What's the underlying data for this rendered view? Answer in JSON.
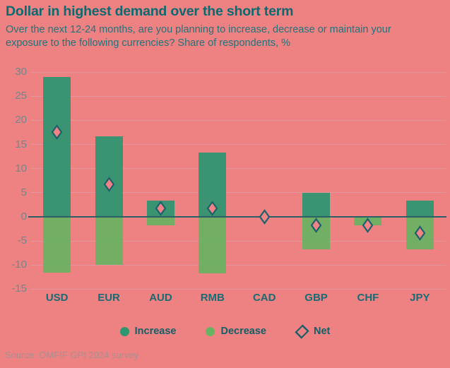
{
  "header": {
    "title": "Dollar in highest demand over the short term",
    "subtitle": "Over the next 12-24 months, are you planning to increase, decrease or maintain your exposure to the following currencies? Share of respondents, %"
  },
  "legend": {
    "increase_label": "Increase",
    "decrease_label": "Decrease",
    "net_label": "Net"
  },
  "footer": {
    "source": "Source: OMFIF GPI 2024 survey"
  },
  "chart_data": {
    "type": "bar",
    "title": "Dollar in highest demand over the short term",
    "subtitle": "Over the next 12-24 months, are you planning to increase, decrease or maintain your exposure to the following currencies? Share of respondents, %",
    "categories": [
      "USD",
      "EUR",
      "AUD",
      "RMB",
      "CAD",
      "GBP",
      "CHF",
      "JPY"
    ],
    "series": [
      {
        "name": "Increase",
        "type": "bar",
        "color": "#2d9670",
        "values": [
          29,
          16.7,
          3.3,
          13.3,
          0,
          5,
          0,
          3.3
        ]
      },
      {
        "name": "Decrease",
        "type": "bar",
        "color": "#69b163",
        "values": [
          -11.5,
          -10,
          -1.7,
          -11.7,
          0,
          -6.7,
          -1.7,
          -6.7
        ]
      },
      {
        "name": "Net",
        "type": "scatter-diamond",
        "color": "#f28384",
        "stroke": "#1a626c",
        "values": [
          17.5,
          6.7,
          1.7,
          1.7,
          0,
          -1.7,
          -1.7,
          -3.3
        ]
      }
    ],
    "ylabel": "",
    "xlabel": "",
    "ylim": [
      -15,
      30
    ],
    "yticks": [
      30,
      25,
      20,
      15,
      10,
      5,
      0,
      -5,
      -10,
      -15
    ],
    "grid": true,
    "legend_position": "bottom"
  },
  "theme": {
    "background": "#ee8181",
    "title_color": "#0b6a70",
    "subtitle_color": "#20747b",
    "axis_text": "#6e898c",
    "axis_line": "#2b6069",
    "gridline": "#e4949a",
    "xlabel_color": "#196b74",
    "legend_text": "#115f68",
    "diamond_stroke": "#135f68",
    "source_text": "#a7908f"
  }
}
